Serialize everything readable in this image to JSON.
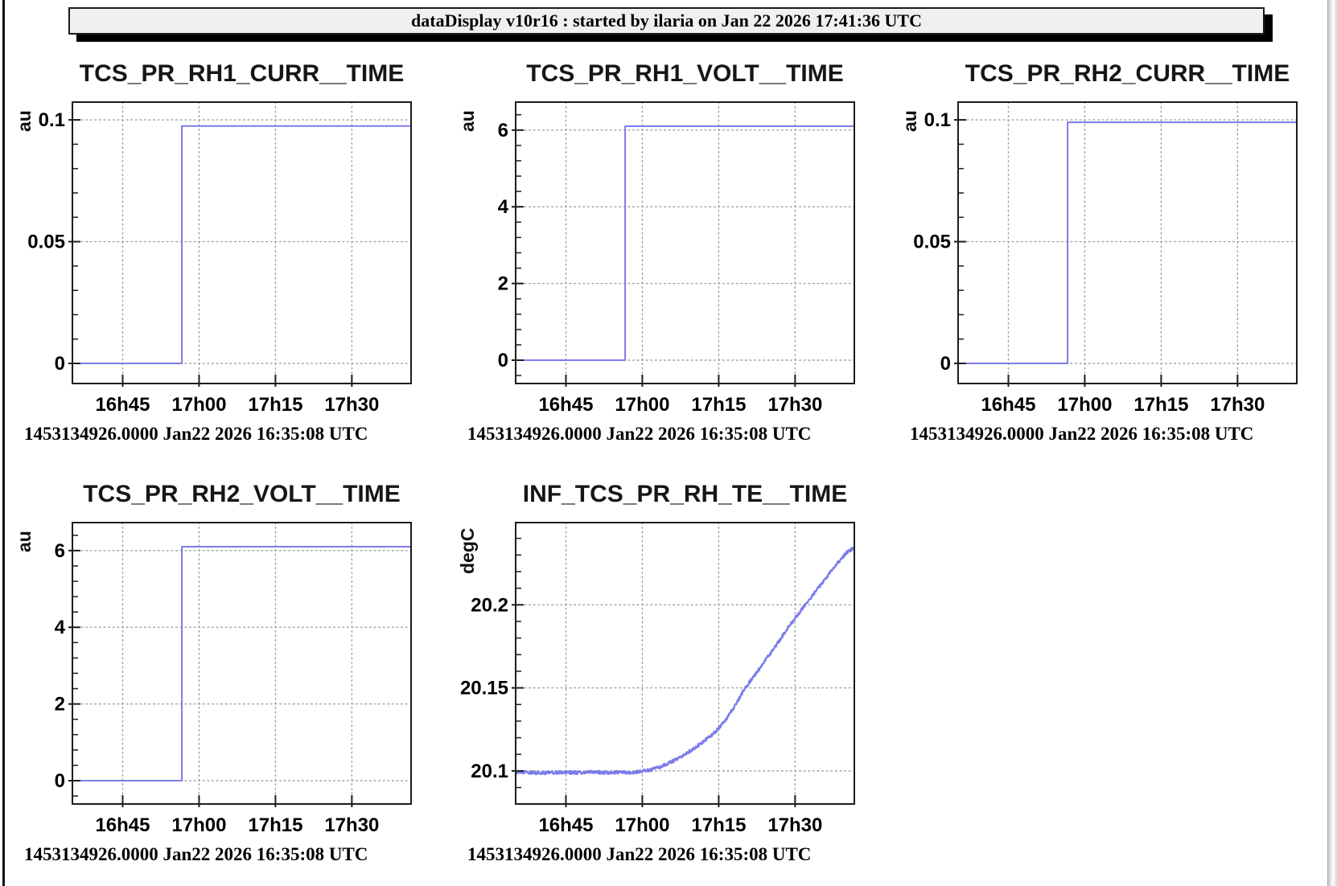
{
  "window": {
    "titlebar_text": "dataDisplay v10r16 : started by ilaria on Jan 22 2026 17:41:36 UTC"
  },
  "colors": {
    "line_blue": "#7b7bea",
    "grid_gray": "#9e9e9e",
    "frame_black": "#1c1c1c",
    "titlebar_bg": "#f0f0f0",
    "text_black": "#000000"
  },
  "chart_data": [
    {
      "type": "line",
      "title": "TCS_PR_RH1_CURR__TIME",
      "ylabel": "au",
      "xlabel": "",
      "footer": "1453134926.0000 Jan22 2026 16:35:08 UTC",
      "grid": {
        "row": 0,
        "col": 0,
        "grid_on": true,
        "legend": "none"
      },
      "x_start_label": "16:35:08",
      "x_range_minutes": [
        0,
        66.5
      ],
      "x_ticks": [
        {
          "label": "16h45",
          "t": 9.87
        },
        {
          "label": "17h00",
          "t": 24.87
        },
        {
          "label": "17h15",
          "t": 39.87
        },
        {
          "label": "17h30",
          "t": 54.87
        }
      ],
      "y_range": [
        -0.00825,
        0.1073
      ],
      "y_ticks": [
        {
          "label": "0.1",
          "v": 0.1
        },
        {
          "label": "0.05",
          "v": 0.05
        },
        {
          "label": "0",
          "v": 0
        }
      ],
      "y_minor_step": 0.01,
      "series": [
        {
          "name": "TCS_PR_RH1_CURR",
          "kind": "step",
          "step_time_min": 21.5,
          "level_before": 0.0,
          "level_after": 0.0975
        }
      ]
    },
    {
      "type": "line",
      "title": "TCS_PR_RH1_VOLT__TIME",
      "ylabel": "au",
      "xlabel": "",
      "footer": "1453134926.0000 Jan22 2026 16:35:08 UTC",
      "grid": {
        "row": 0,
        "col": 1,
        "grid_on": true,
        "legend": "none"
      },
      "x_start_label": "16:35:08",
      "x_range_minutes": [
        0,
        66.5
      ],
      "x_ticks": [
        {
          "label": "16h45",
          "t": 9.87
        },
        {
          "label": "17h00",
          "t": 24.87
        },
        {
          "label": "17h15",
          "t": 39.87
        },
        {
          "label": "17h30",
          "t": 54.87
        }
      ],
      "y_range": [
        -0.608,
        6.73
      ],
      "y_ticks": [
        {
          "label": "6",
          "v": 6
        },
        {
          "label": "4",
          "v": 4
        },
        {
          "label": "2",
          "v": 2
        },
        {
          "label": "0",
          "v": 0
        }
      ],
      "y_minor_step": 0.4,
      "series": [
        {
          "name": "TCS_PR_RH1_VOLT",
          "kind": "step",
          "step_time_min": 21.5,
          "level_before": 0.0,
          "level_after": 6.1
        }
      ]
    },
    {
      "type": "line",
      "title": "TCS_PR_RH2_CURR__TIME",
      "ylabel": "au",
      "xlabel": "",
      "footer": "1453134926.0000 Jan22 2026 16:35:08 UTC",
      "grid": {
        "row": 0,
        "col": 2,
        "grid_on": true,
        "legend": "none"
      },
      "x_start_label": "16:35:08",
      "x_range_minutes": [
        0,
        66.5
      ],
      "x_ticks": [
        {
          "label": "16h45",
          "t": 9.87
        },
        {
          "label": "17h00",
          "t": 24.87
        },
        {
          "label": "17h15",
          "t": 39.87
        },
        {
          "label": "17h30",
          "t": 54.87
        }
      ],
      "y_range": [
        -0.00825,
        0.1073
      ],
      "y_ticks": [
        {
          "label": "0.1",
          "v": 0.1
        },
        {
          "label": "0.05",
          "v": 0.05
        },
        {
          "label": "0",
          "v": 0
        }
      ],
      "y_minor_step": 0.01,
      "series": [
        {
          "name": "TCS_PR_RH2_CURR",
          "kind": "step",
          "step_time_min": 21.5,
          "level_before": 0.0,
          "level_after": 0.099
        }
      ]
    },
    {
      "type": "line",
      "title": "TCS_PR_RH2_VOLT__TIME",
      "ylabel": "au",
      "xlabel": "",
      "footer": "1453134926.0000 Jan22 2026 16:35:08 UTC",
      "grid": {
        "row": 1,
        "col": 0,
        "grid_on": true,
        "legend": "none"
      },
      "x_start_label": "16:35:08",
      "x_range_minutes": [
        0,
        66.5
      ],
      "x_ticks": [
        {
          "label": "16h45",
          "t": 9.87
        },
        {
          "label": "17h00",
          "t": 24.87
        },
        {
          "label": "17h15",
          "t": 39.87
        },
        {
          "label": "17h30",
          "t": 54.87
        }
      ],
      "y_range": [
        -0.608,
        6.73
      ],
      "y_ticks": [
        {
          "label": "6",
          "v": 6
        },
        {
          "label": "4",
          "v": 4
        },
        {
          "label": "2",
          "v": 2
        },
        {
          "label": "0",
          "v": 0
        }
      ],
      "y_minor_step": 0.4,
      "series": [
        {
          "name": "TCS_PR_RH2_VOLT",
          "kind": "step",
          "step_time_min": 21.5,
          "level_before": 0.0,
          "level_after": 6.1
        }
      ]
    },
    {
      "type": "line",
      "title": "INF_TCS_PR_RH_TE__TIME",
      "ylabel": "degC",
      "xlabel": "",
      "footer": "1453134926.0000 Jan22 2026 16:35:08 UTC",
      "grid": {
        "row": 1,
        "col": 1,
        "grid_on": true,
        "legend": "none"
      },
      "x_start_label": "16:35:08",
      "x_range_minutes": [
        0,
        66.5
      ],
      "x_ticks": [
        {
          "label": "16h45",
          "t": 9.87
        },
        {
          "label": "17h00",
          "t": 24.87
        },
        {
          "label": "17h15",
          "t": 39.87
        },
        {
          "label": "17h30",
          "t": 54.87
        }
      ],
      "y_range": [
        20.0801,
        20.2495
      ],
      "y_ticks": [
        {
          "label": "20.2",
          "v": 20.2
        },
        {
          "label": "20.15",
          "v": 20.15
        },
        {
          "label": "20.1",
          "v": 20.1
        }
      ],
      "y_minor_step": 0.01,
      "series": [
        {
          "name": "INF_TCS_PR_RH_TE",
          "kind": "noisy-line",
          "noise_amp": 0.001,
          "points": [
            [
              0,
              20.099
            ],
            [
              3,
              20.0991
            ],
            [
              6,
              20.0988
            ],
            [
              9,
              20.0992
            ],
            [
              12,
              20.0989
            ],
            [
              15,
              20.0993
            ],
            [
              18,
              20.099
            ],
            [
              21,
              20.0991
            ],
            [
              23,
              20.0989
            ],
            [
              25,
              20.0998
            ],
            [
              27,
              20.101
            ],
            [
              29,
              20.1032
            ],
            [
              31,
              20.106
            ],
            [
              33,
              20.1095
            ],
            [
              35,
              20.1135
            ],
            [
              37,
              20.118
            ],
            [
              39,
              20.123
            ],
            [
              41,
              20.1295
            ],
            [
              43,
              20.139
            ],
            [
              45,
              20.1495
            ],
            [
              47,
              20.158
            ],
            [
              49,
              20.1665
            ],
            [
              51,
              20.175
            ],
            [
              53,
              20.184
            ],
            [
              55,
              20.1925
            ],
            [
              57,
              20.2005
            ],
            [
              59,
              20.2085
            ],
            [
              61,
              20.2165
            ],
            [
              63,
              20.2245
            ],
            [
              65,
              20.2315
            ],
            [
              66.5,
              20.2345
            ]
          ]
        }
      ]
    }
  ]
}
